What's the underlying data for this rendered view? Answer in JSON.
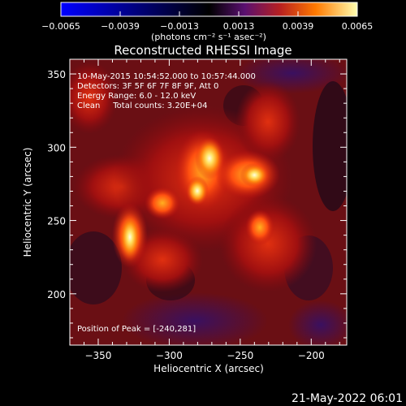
{
  "chart_data": {
    "type": "heatmap",
    "title": "Reconstructed RHESSI Image",
    "xlabel": "Heliocentric X (arcsec)",
    "ylabel": "Heliocentric Y (arcsec)",
    "xlim": [
      -370,
      -175
    ],
    "ylim": [
      165,
      360
    ],
    "xticks": [
      -350,
      -300,
      -250,
      -200
    ],
    "yticks": [
      200,
      250,
      300,
      350
    ],
    "colorbar": {
      "min": -0.0065,
      "max": 0.0065,
      "ticks": [
        "-0.0065",
        "-0.0039",
        "-0.0013",
        "0.0013",
        "0.0039",
        "0.0065"
      ],
      "units": "(photons cm⁻² s⁻¹ asec⁻²)"
    },
    "annotations": [
      "10-May-2015 10:54:52.000 to 10:57:44.000",
      "Detectors: 3F 5F 6F 7F 8F 9F, Att 0",
      "Energy Range: 6.0 - 12.0 keV",
      "Clean     Total counts: 3.20E+04"
    ],
    "peak_label": "Position of Peak = [-240,281]",
    "peak": [
      -240,
      281
    ]
  },
  "footer": {
    "timestamp": "21-May-2022 06:01"
  }
}
